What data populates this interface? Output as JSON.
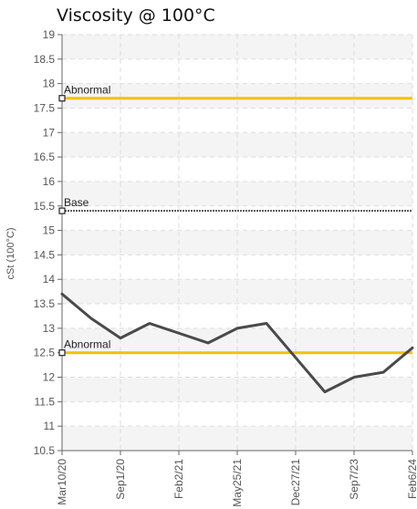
{
  "chart_data": {
    "type": "line",
    "title": "Viscosity @ 100°C",
    "xlabel": "",
    "ylabel": "cSt (100°C)",
    "ylim": [
      10.5,
      19
    ],
    "yticks": [
      "10.5",
      "11",
      "11.5",
      "12",
      "12.5",
      "13",
      "13.5",
      "14",
      "14.5",
      "15",
      "15.5",
      "16",
      "16.5",
      "17",
      "17.5",
      "18",
      "18.5",
      "19"
    ],
    "xticks": [
      "Mar10/20",
      "Sep1/20",
      "Feb2/21",
      "May25/21",
      "Dec27/21",
      "Sep7/23",
      "Feb6/24"
    ],
    "grid": true,
    "series": [
      {
        "values": [
          13.7,
          13.2,
          12.8,
          13.1,
          12.9,
          12.7,
          13.0,
          13.1,
          12.4,
          11.7,
          12.0,
          12.1,
          12.6
        ],
        "color": "#4a4a4a"
      }
    ],
    "reference_lines": [
      {
        "label": "Abnormal",
        "value": 17.7,
        "color": "#f2c200",
        "style": "solid"
      },
      {
        "label": "Base",
        "value": 15.4,
        "color": "#555555",
        "style": "dotted"
      },
      {
        "label": "Abnormal",
        "value": 12.5,
        "color": "#f2c200",
        "style": "solid"
      }
    ]
  }
}
